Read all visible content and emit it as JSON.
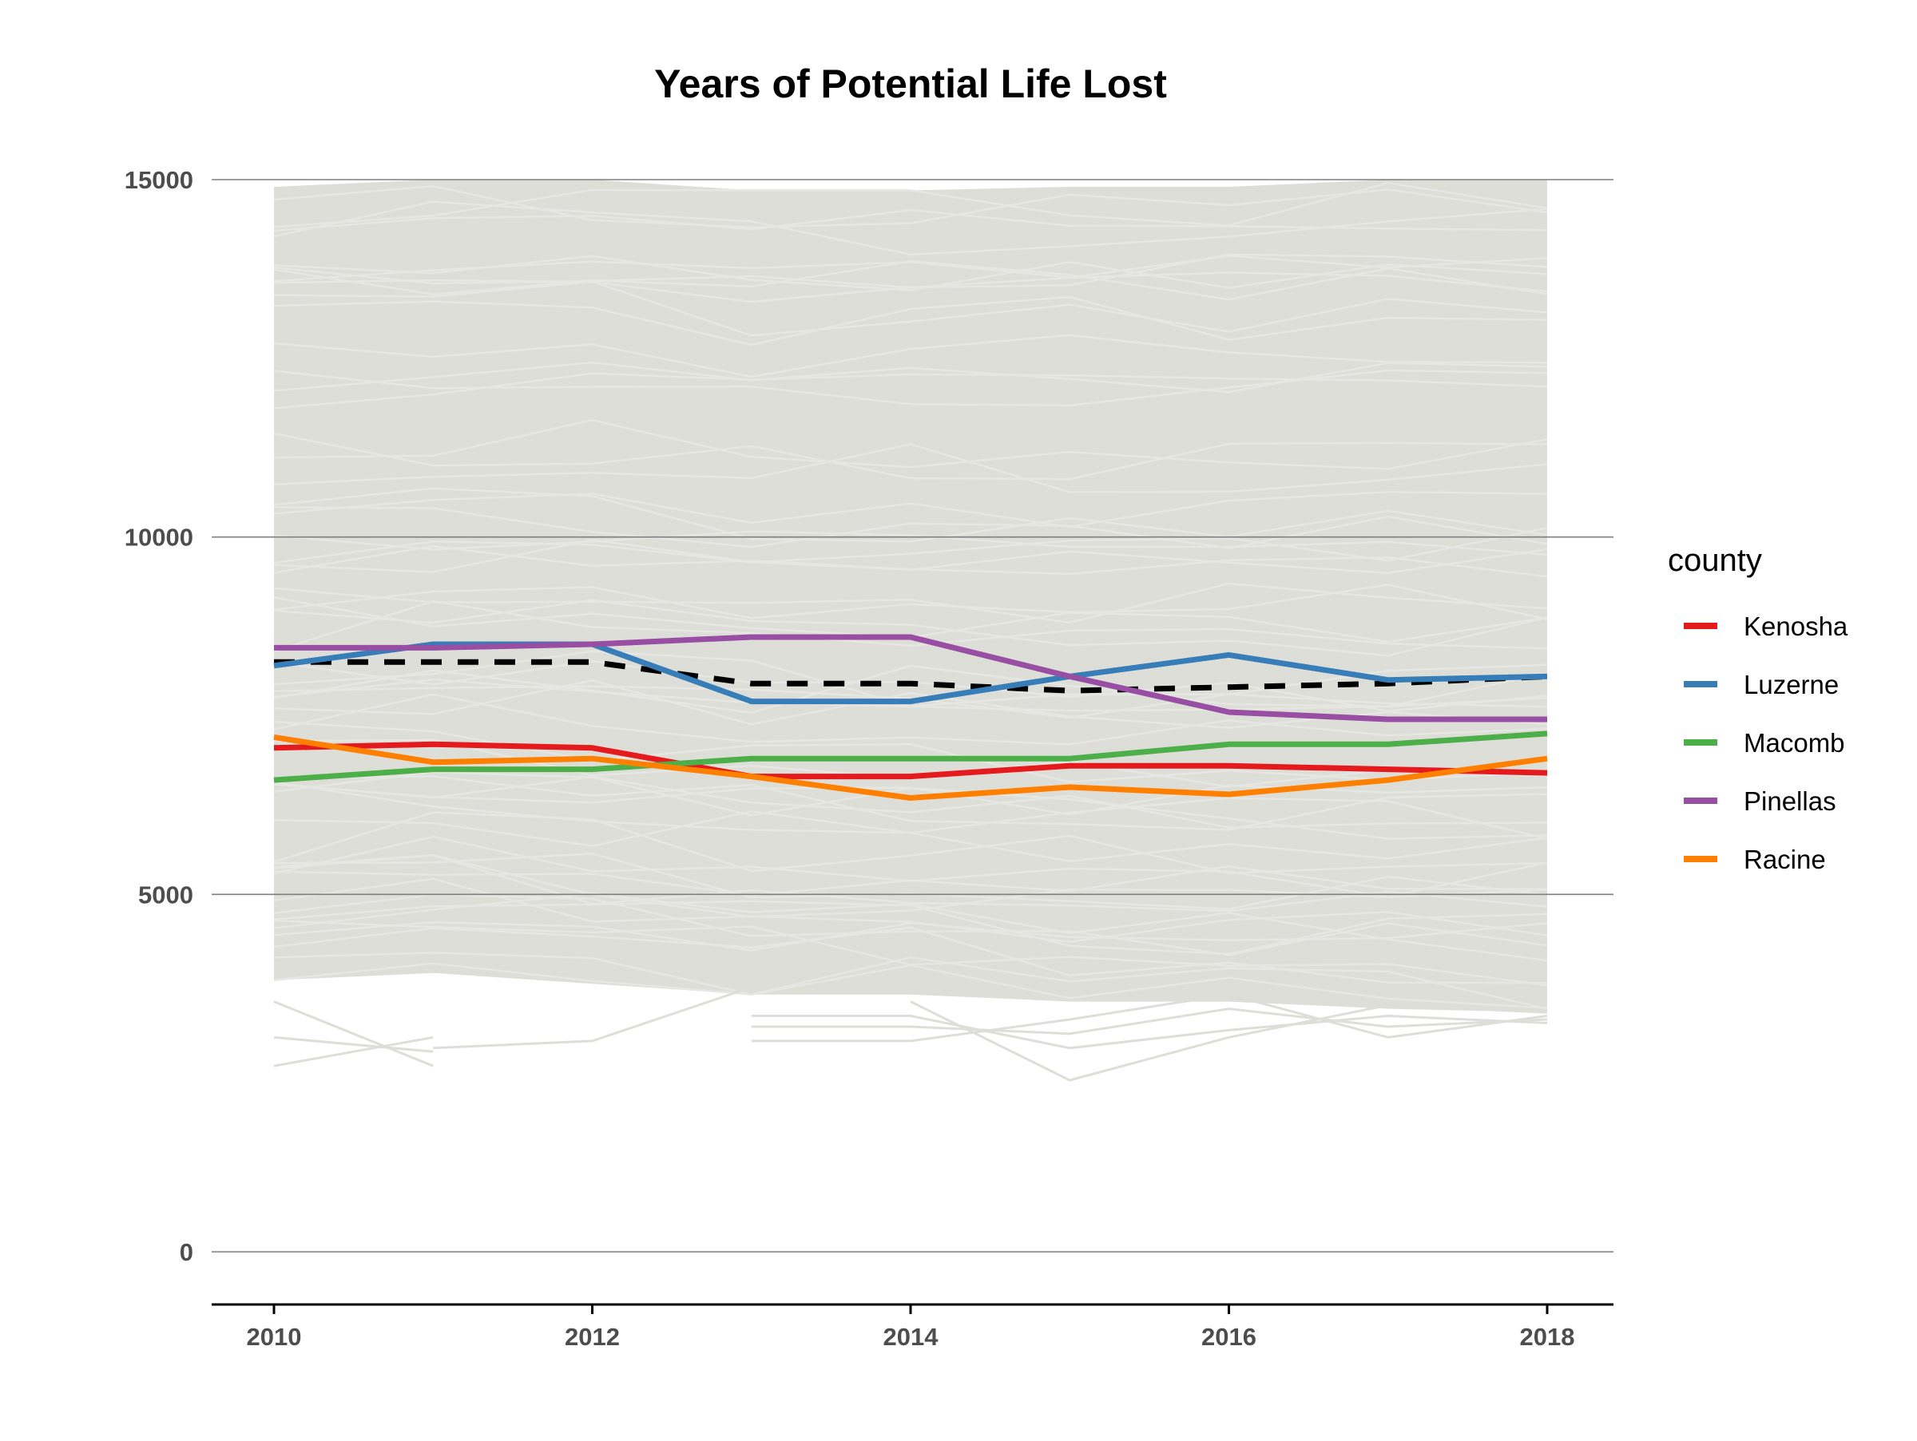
{
  "chart_data": {
    "type": "line",
    "title": "Years of Potential Life Lost",
    "xlabel": "",
    "ylabel": "",
    "x": [
      2010,
      2011,
      2012,
      2013,
      2014,
      2015,
      2016,
      2017,
      2018
    ],
    "xticks": [
      2010,
      2012,
      2014,
      2016,
      2018
    ],
    "yticks": [
      0,
      5000,
      10000,
      15000
    ],
    "xlim": [
      2009.6,
      2018.2
    ],
    "ylim": [
      -750,
      15000
    ],
    "grid": "horizontal major",
    "legend_position": "right",
    "legend_title": "county",
    "background_band": {
      "description_color": "#deded9",
      "upper": [
        14900,
        15000,
        15000,
        14850,
        14850,
        14900,
        14900,
        15000,
        15000
      ],
      "lower": [
        3800,
        3900,
        3750,
        3600,
        3600,
        3500,
        3500,
        3400,
        3350
      ]
    },
    "background_outliers": [
      [
        3000,
        2800,
        null,
        null,
        null,
        null,
        null,
        null,
        null
      ],
      [
        2600,
        3000,
        null,
        null,
        null,
        null,
        null,
        null,
        null
      ],
      [
        3500,
        2600,
        null,
        null,
        null,
        null,
        null,
        null,
        null
      ],
      [
        null,
        2850,
        2950,
        3700,
        null,
        null,
        null,
        null,
        null
      ],
      [
        null,
        null,
        null,
        2950,
        2950,
        3250,
        3600,
        3000,
        3300
      ],
      [
        null,
        null,
        null,
        3150,
        3150,
        3050,
        3400,
        3150,
        3250
      ],
      [
        null,
        null,
        null,
        3300,
        3300,
        2850,
        3100,
        3300,
        3200
      ],
      [
        null,
        null,
        null,
        null,
        3500,
        2400,
        3000,
        3450,
        3350
      ]
    ],
    "series": [
      {
        "name": "Kenosha",
        "color": "#e41a1c",
        "values": [
          7050,
          7100,
          7050,
          6650,
          6650,
          6800,
          6800,
          6750,
          6700
        ]
      },
      {
        "name": "Luzerne",
        "color": "#377eb8",
        "values": [
          8200,
          8500,
          8500,
          7700,
          7700,
          8050,
          8350,
          8000,
          8050
        ]
      },
      {
        "name": "Macomb",
        "color": "#4daf4a",
        "values": [
          6600,
          6750,
          6750,
          6900,
          6900,
          6900,
          7100,
          7100,
          7250
        ]
      },
      {
        "name": "Pinellas",
        "color": "#984ea3",
        "values": [
          8450,
          8450,
          8500,
          8600,
          8600,
          8050,
          7550,
          7450,
          7450
        ]
      },
      {
        "name": "Racine",
        "color": "#ff7f00",
        "values": [
          7200,
          6850,
          6900,
          6650,
          6350,
          6500,
          6400,
          6600,
          6900
        ]
      }
    ],
    "reference_line": {
      "style": "dashed",
      "color": "#000000",
      "values": [
        8250,
        8250,
        8250,
        7950,
        7950,
        7850,
        7900,
        7950,
        8050
      ]
    }
  }
}
